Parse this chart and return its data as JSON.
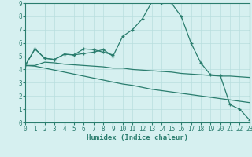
{
  "xlabel": "Humidex (Indice chaleur)",
  "xlim": [
    0,
    23
  ],
  "ylim": [
    0,
    9
  ],
  "xticks": [
    0,
    1,
    2,
    3,
    4,
    5,
    6,
    7,
    8,
    9,
    10,
    11,
    12,
    13,
    14,
    15,
    16,
    17,
    18,
    19,
    20,
    21,
    22,
    23
  ],
  "yticks": [
    0,
    1,
    2,
    3,
    4,
    5,
    6,
    7,
    8,
    9
  ],
  "background_color": "#d6f0f0",
  "grid_color": "#b8dede",
  "line_color": "#2a7d6e",
  "line1_x": [
    0,
    1,
    2,
    3,
    4,
    5,
    6,
    7,
    8,
    9,
    10,
    11,
    12,
    13,
    14,
    15,
    16,
    17,
    18,
    19,
    20,
    21,
    22,
    23
  ],
  "line1_y": [
    4.3,
    5.55,
    4.85,
    4.75,
    5.15,
    5.1,
    5.2,
    5.3,
    5.5,
    5.0,
    6.5,
    7.0,
    7.8,
    9.1,
    9.0,
    9.0,
    8.0,
    6.0,
    4.5,
    3.6,
    3.55,
    1.35,
    1.0,
    0.2
  ],
  "line2_x": [
    0,
    1,
    2,
    3,
    4,
    5,
    6,
    7,
    8,
    9
  ],
  "line2_y": [
    4.3,
    5.55,
    4.85,
    4.75,
    5.15,
    5.1,
    5.55,
    5.5,
    5.3,
    5.1
  ],
  "line3_x": [
    0,
    1,
    2,
    3,
    4,
    5,
    6,
    7,
    8,
    9,
    10,
    11,
    12,
    13,
    14,
    15,
    16,
    17,
    18,
    19,
    20,
    21,
    22,
    23
  ],
  "line3_y": [
    4.3,
    4.3,
    4.55,
    4.5,
    4.4,
    4.35,
    4.3,
    4.25,
    4.2,
    4.1,
    4.1,
    4.0,
    3.95,
    3.9,
    3.85,
    3.8,
    3.7,
    3.65,
    3.6,
    3.55,
    3.5,
    3.5,
    3.45,
    3.4
  ],
  "line4_x": [
    0,
    1,
    2,
    3,
    4,
    5,
    6,
    7,
    8,
    9,
    10,
    11,
    12,
    13,
    14,
    15,
    16,
    17,
    18,
    19,
    20,
    21,
    22,
    23
  ],
  "line4_y": [
    4.3,
    4.25,
    4.1,
    3.95,
    3.8,
    3.65,
    3.5,
    3.35,
    3.2,
    3.05,
    2.9,
    2.8,
    2.65,
    2.5,
    2.4,
    2.3,
    2.2,
    2.1,
    2.0,
    1.9,
    1.8,
    1.7,
    1.6,
    1.5
  ]
}
